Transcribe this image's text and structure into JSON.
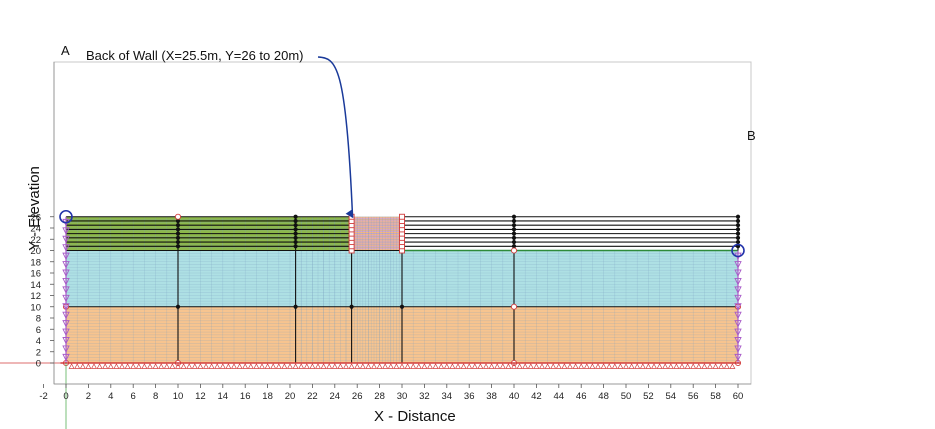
{
  "axes": {
    "x_label": "X - Distance",
    "y_label": "Y - Elevation",
    "x_ticks": [
      "-2",
      "0",
      "2",
      "4",
      "6",
      "8",
      "10",
      "12",
      "14",
      "16",
      "18",
      "20",
      "22",
      "24",
      "26",
      "28",
      "30",
      "32",
      "34",
      "36",
      "38",
      "40",
      "42",
      "44",
      "46",
      "48",
      "50",
      "52",
      "54",
      "56",
      "58",
      "60"
    ],
    "y_ticks": [
      "0",
      "2",
      "4",
      "6",
      "8",
      "10",
      "12",
      "14",
      "16",
      "18",
      "20",
      "22",
      "24",
      "26"
    ]
  },
  "annotations": {
    "callout": "Back of Wall (X=25.5m, Y=26 to 20m)",
    "point_a": "A",
    "point_b": "B"
  },
  "colors": {
    "backfill_green": "#8db84a",
    "wall_striped": "#f4b87c",
    "wall_stripe": "#cfa4d8",
    "middle_layer_cyan": "#aee0e4",
    "bottom_layer_orange": "#f7c48f",
    "callout_arrow": "#1a3a9a",
    "circle_marker": "#2233aa",
    "fixity_red": "#d23c3c",
    "boundary_purple": "#a85cc8"
  }
}
